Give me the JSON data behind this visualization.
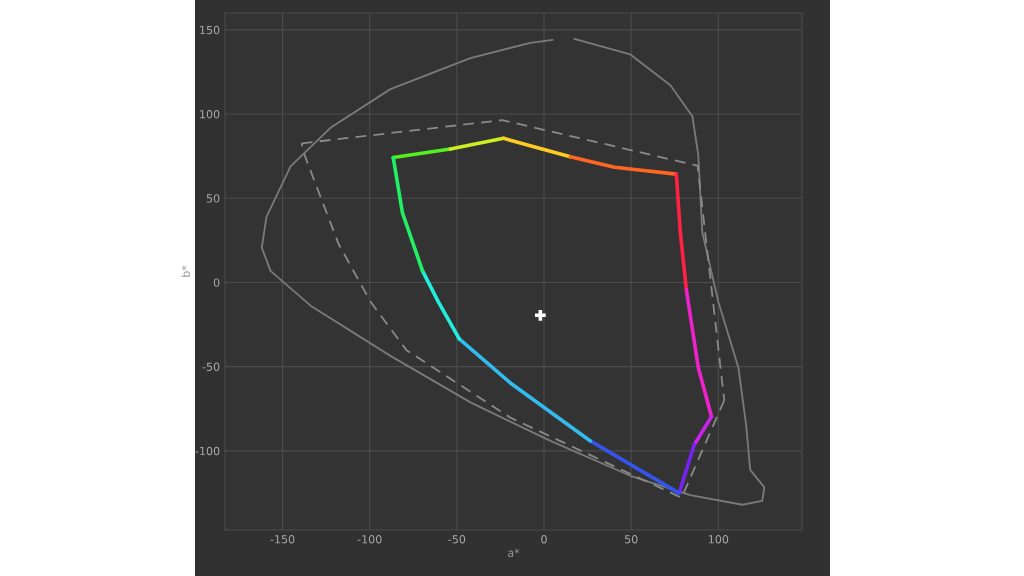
{
  "chart_data": {
    "type": "line",
    "xlabel": "a*",
    "ylabel": "b*",
    "xlim": [
      -183,
      148
    ],
    "ylim": [
      -147,
      160
    ],
    "xticks": [
      -150,
      -100,
      -50,
      0,
      50,
      100
    ],
    "yticks": [
      -100,
      -50,
      0,
      50,
      100,
      150
    ],
    "grid": true,
    "legend": false,
    "series": [
      {
        "type": "line",
        "color": "#7a7a7a",
        "line_style": "solid",
        "x": [
          17.4,
          49.5,
          72.5,
          85.1,
          88.5,
          90.8,
          100,
          111.5,
          116,
          118.3,
          126.4,
          125.2,
          113.8,
          83.9,
          49.5,
          3.7,
          -42.2,
          -88.1,
          -133.9,
          -156.9,
          -161.9,
          -159.2,
          -145.4,
          -122.5,
          -88.1,
          -42.2,
          -7.8,
          5
        ],
        "values": [
          144.6,
          135.4,
          117.1,
          98.7,
          75.8,
          29.8,
          -11.5,
          -50.5,
          -85,
          -111.3,
          -121.7,
          -129.7,
          -132,
          -126.3,
          -114.8,
          -94.1,
          -71.2,
          -43.6,
          -13.8,
          6.9,
          20.7,
          39,
          68.9,
          91.8,
          114.8,
          133.2,
          142.3,
          144
        ]
      },
      {
        "type": "line",
        "color": "#8a8a8a",
        "line_style": "dashed",
        "x": [
          -139,
          -23.9,
          88.1,
          103.4
        ],
        "values": [
          82.6,
          96.4,
          69.3,
          -70
        ]
      },
      {
        "type": "line",
        "color": "#8a8a8a",
        "line_style": "dashed",
        "x": [
          103.4,
          78.9,
          -19.3,
          -78.9,
          -99.5,
          -117.9,
          -137.4,
          -139
        ],
        "values": [
          -70,
          -127.9,
          -80.3,
          -40.2,
          -11.5,
          23,
          75.8,
          82.6
        ]
      },
      {
        "type": "line",
        "color": "#55ee22",
        "line_style": "solid",
        "x": [
          -86.5,
          -53.7
        ],
        "values": [
          74.2,
          79.2
        ]
      },
      {
        "type": "line",
        "color": "#ccee22",
        "line_style": "solid",
        "x": [
          -53.7,
          -23.2
        ],
        "values": [
          79.2,
          85.6
        ]
      },
      {
        "type": "line",
        "color": "#ffcc22",
        "line_style": "solid",
        "x": [
          -23.2,
          15.1
        ],
        "values": [
          85.6,
          74.6
        ]
      },
      {
        "type": "line",
        "color": "#ff6622",
        "line_style": "solid",
        "x": [
          15.1,
          40.4,
          75.9
        ],
        "values": [
          74.6,
          68.4,
          64.3
        ]
      },
      {
        "type": "line",
        "color": "#ff2244",
        "line_style": "solid",
        "x": [
          75.9,
          78.2,
          81.7
        ],
        "values": [
          64.3,
          29.8,
          -4.6
        ]
      },
      {
        "type": "line",
        "color": "#ee22cc",
        "line_style": "solid",
        "x": [
          81.7,
          88.5,
          96.1
        ],
        "values": [
          -4.6,
          -50.5,
          -79.7
        ]
      },
      {
        "type": "line",
        "color": "#cc22ee",
        "line_style": "solid",
        "x": [
          96.1,
          86.2
        ],
        "values": [
          -79.7,
          -96.4
        ]
      },
      {
        "type": "line",
        "color": "#7722ee",
        "line_style": "solid",
        "x": [
          86.2,
          77.5
        ],
        "values": [
          -96.4,
          -125.1
        ]
      },
      {
        "type": "line",
        "color": "#3355ee",
        "line_style": "solid",
        "x": [
          77.5,
          26.6
        ],
        "values": [
          -125.1,
          -94.1
        ]
      },
      {
        "type": "line",
        "color": "#33bbee",
        "line_style": "solid",
        "x": [
          26.6,
          -19.3,
          -48.6
        ],
        "values": [
          -94.1,
          -59.7,
          -33.5
        ]
      },
      {
        "type": "line",
        "color": "#22eedd",
        "line_style": "solid",
        "x": [
          -48.6,
          -60.6,
          -69.7
        ],
        "values": [
          -33.5,
          -11.5,
          6.9
        ]
      },
      {
        "type": "line",
        "color": "#22ee66",
        "line_style": "solid",
        "x": [
          -69.7,
          -81.2,
          -86.5
        ],
        "values": [
          6.9,
          41.3,
          74.2
        ]
      },
      {
        "type": "scatter",
        "color": "#ffffff",
        "marker": "cross",
        "x": [
          -2.1
        ],
        "values": [
          -19.5
        ]
      }
    ]
  }
}
